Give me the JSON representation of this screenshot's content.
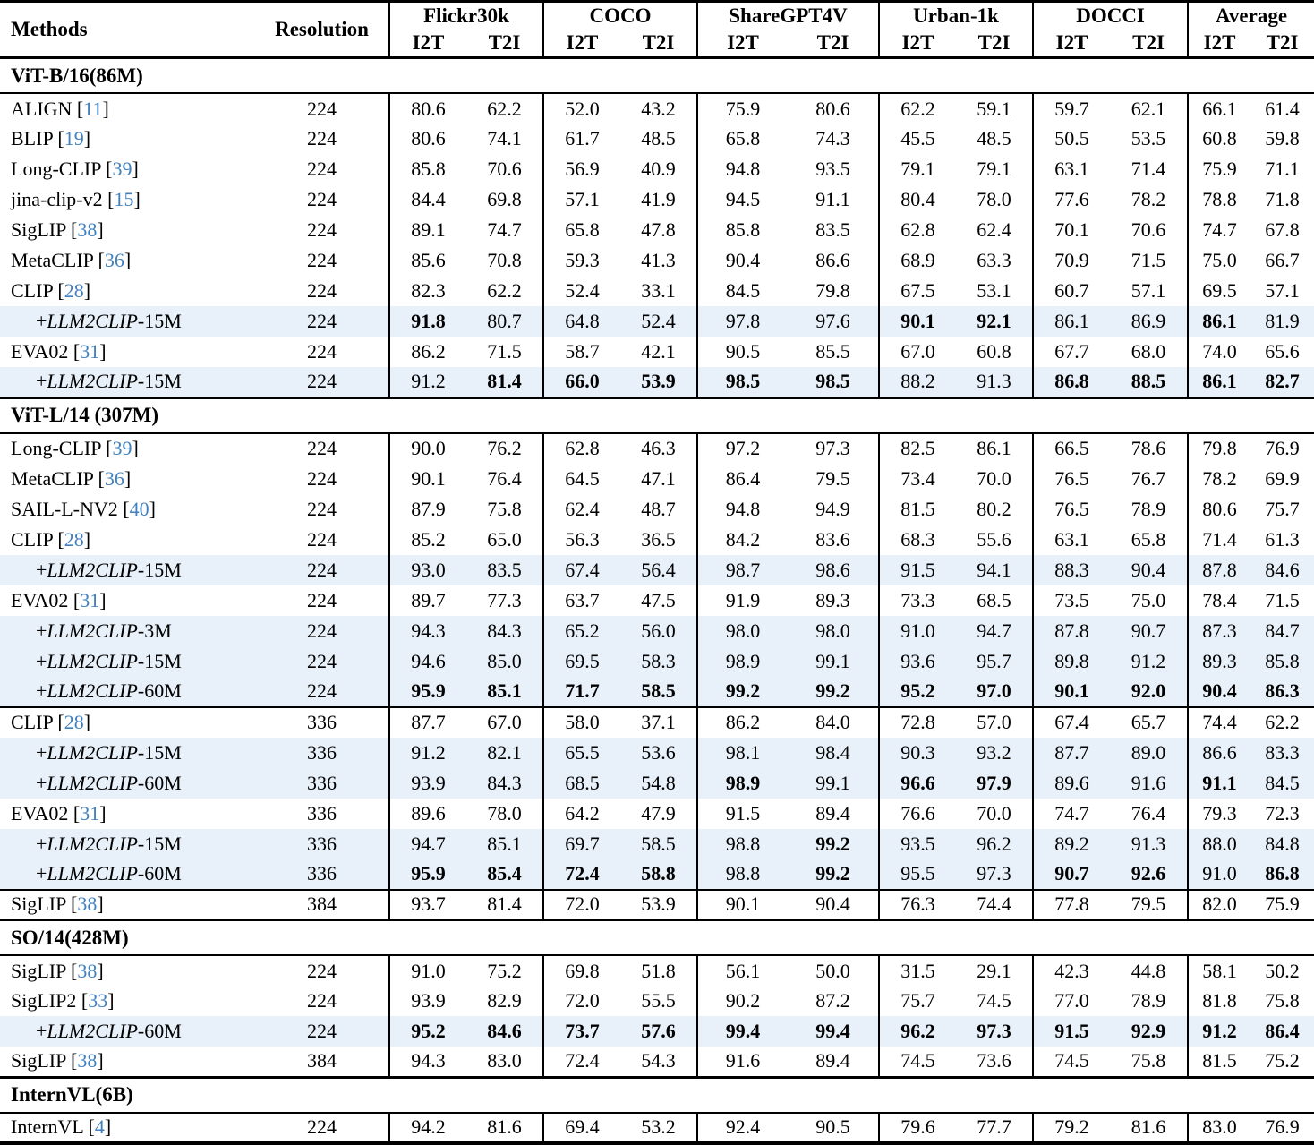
{
  "table": {
    "col_methods": "Methods",
    "col_resolution": "Resolution",
    "llm_prefix": "+",
    "llm_name": "LLM2CLIP",
    "groups": [
      "Flickr30k",
      "COCO",
      "ShareGPT4V",
      "Urban-1k",
      "DOCCI",
      "Average"
    ],
    "subcols": [
      "I2T",
      "T2I"
    ],
    "colors": {
      "highlight": "#e8f1fa",
      "citation": "#4080bf"
    },
    "sections": [
      {
        "title": "ViT-B/16(86M)",
        "rows": [
          {
            "method": "ALIGN",
            "cite": "11",
            "res": "224",
            "vals": [
              "80.6",
              "62.2",
              "52.0",
              "43.2",
              "75.9",
              "80.6",
              "62.2",
              "59.1",
              "59.7",
              "62.1",
              "66.1",
              "61.4"
            ],
            "bold": [],
            "hl": false
          },
          {
            "method": "BLIP",
            "cite": "19",
            "res": "224",
            "vals": [
              "80.6",
              "74.1",
              "61.7",
              "48.5",
              "65.8",
              "74.3",
              "45.5",
              "48.5",
              "50.5",
              "53.5",
              "60.8",
              "59.8"
            ],
            "bold": [],
            "hl": false
          },
          {
            "method": "Long-CLIP",
            "cite": "39",
            "res": "224",
            "vals": [
              "85.8",
              "70.6",
              "56.9",
              "40.9",
              "94.8",
              "93.5",
              "79.1",
              "79.1",
              "63.1",
              "71.4",
              "75.9",
              "71.1"
            ],
            "bold": [],
            "hl": false
          },
          {
            "method": "jina-clip-v2",
            "cite": "15",
            "res": "224",
            "vals": [
              "84.4",
              "69.8",
              "57.1",
              "41.9",
              "94.5",
              "91.1",
              "80.4",
              "78.0",
              "77.6",
              "78.2",
              "78.8",
              "71.8"
            ],
            "bold": [],
            "hl": false
          },
          {
            "method": "SigLIP",
            "cite": "38",
            "res": "224",
            "vals": [
              "89.1",
              "74.7",
              "65.8",
              "47.8",
              "85.8",
              "83.5",
              "62.8",
              "62.4",
              "70.1",
              "70.6",
              "74.7",
              "67.8"
            ],
            "bold": [],
            "hl": false
          },
          {
            "method": "MetaCLIP",
            "cite": "36",
            "res": "224",
            "vals": [
              "85.6",
              "70.8",
              "59.3",
              "41.3",
              "90.4",
              "86.6",
              "68.9",
              "63.3",
              "70.9",
              "71.5",
              "75.0",
              "66.7"
            ],
            "bold": [],
            "hl": false
          },
          {
            "method": "CLIP",
            "cite": "28",
            "res": "224",
            "vals": [
              "82.3",
              "62.2",
              "52.4",
              "33.1",
              "84.5",
              "79.8",
              "67.5",
              "53.1",
              "60.7",
              "57.1",
              "69.5",
              "57.1"
            ],
            "bold": [],
            "hl": false
          },
          {
            "variant": "-15M",
            "res": "224",
            "vals": [
              "91.8",
              "80.7",
              "64.8",
              "52.4",
              "97.8",
              "97.6",
              "90.1",
              "92.1",
              "86.1",
              "86.9",
              "86.1",
              "81.9"
            ],
            "bold": [
              0,
              6,
              7,
              10
            ],
            "hl": true
          },
          {
            "method": "EVA02",
            "cite": "31",
            "res": "224",
            "vals": [
              "86.2",
              "71.5",
              "58.7",
              "42.1",
              "90.5",
              "85.5",
              "67.0",
              "60.8",
              "67.7",
              "68.0",
              "74.0",
              "65.6"
            ],
            "bold": [],
            "hl": false
          },
          {
            "variant": "-15M",
            "res": "224",
            "vals": [
              "91.2",
              "81.4",
              "66.0",
              "53.9",
              "98.5",
              "98.5",
              "88.2",
              "91.3",
              "86.8",
              "88.5",
              "86.1",
              "82.7"
            ],
            "bold": [
              1,
              2,
              3,
              4,
              5,
              8,
              9,
              10,
              11
            ],
            "hl": true
          }
        ]
      },
      {
        "title": "ViT-L/14 (307M)",
        "rows": [
          {
            "method": "Long-CLIP",
            "cite": "39",
            "res": "224",
            "vals": [
              "90.0",
              "76.2",
              "62.8",
              "46.3",
              "97.2",
              "97.3",
              "82.5",
              "86.1",
              "66.5",
              "78.6",
              "79.8",
              "76.9"
            ],
            "bold": [],
            "hl": false
          },
          {
            "method": "MetaCLIP",
            "cite": "36",
            "res": "224",
            "vals": [
              "90.1",
              "76.4",
              "64.5",
              "47.1",
              "86.4",
              "79.5",
              "73.4",
              "70.0",
              "76.5",
              "76.7",
              "78.2",
              "69.9"
            ],
            "bold": [],
            "hl": false
          },
          {
            "method": "SAIL-L-NV2",
            "cite": "40",
            "res": "224",
            "vals": [
              "87.9",
              "75.8",
              "62.4",
              "48.7",
              "94.8",
              "94.9",
              "81.5",
              "80.2",
              "76.5",
              "78.9",
              "80.6",
              "75.7"
            ],
            "bold": [],
            "hl": false
          },
          {
            "method": "CLIP",
            "cite": "28",
            "res": "224",
            "vals": [
              "85.2",
              "65.0",
              "56.3",
              "36.5",
              "84.2",
              "83.6",
              "68.3",
              "55.6",
              "63.1",
              "65.8",
              "71.4",
              "61.3"
            ],
            "bold": [],
            "hl": false
          },
          {
            "variant": "-15M",
            "res": "224",
            "vals": [
              "93.0",
              "83.5",
              "67.4",
              "56.4",
              "98.7",
              "98.6",
              "91.5",
              "94.1",
              "88.3",
              "90.4",
              "87.8",
              "84.6"
            ],
            "bold": [],
            "hl": true
          },
          {
            "method": "EVA02",
            "cite": "31",
            "res": "224",
            "vals": [
              "89.7",
              "77.3",
              "63.7",
              "47.5",
              "91.9",
              "89.3",
              "73.3",
              "68.5",
              "73.5",
              "75.0",
              "78.4",
              "71.5"
            ],
            "bold": [],
            "hl": false
          },
          {
            "variant": "-3M",
            "res": "224",
            "vals": [
              "94.3",
              "84.3",
              "65.2",
              "56.0",
              "98.0",
              "98.0",
              "91.0",
              "94.7",
              "87.8",
              "90.7",
              "87.3",
              "84.7"
            ],
            "bold": [],
            "hl": true
          },
          {
            "variant": "-15M",
            "res": "224",
            "vals": [
              "94.6",
              "85.0",
              "69.5",
              "58.3",
              "98.9",
              "99.1",
              "93.6",
              "95.7",
              "89.8",
              "91.2",
              "89.3",
              "85.8"
            ],
            "bold": [],
            "hl": true
          },
          {
            "variant": "-60M",
            "res": "224",
            "vals": [
              "95.9",
              "85.1",
              "71.7",
              "58.5",
              "99.2",
              "99.2",
              "95.2",
              "97.0",
              "90.1",
              "92.0",
              "90.4",
              "86.3"
            ],
            "bold": "all",
            "hl": true
          },
          {
            "method": "CLIP",
            "cite": "28",
            "res": "336",
            "vals": [
              "87.7",
              "67.0",
              "58.0",
              "37.1",
              "86.2",
              "84.0",
              "72.8",
              "57.0",
              "67.4",
              "65.7",
              "74.4",
              "62.2"
            ],
            "bold": [],
            "hl": false,
            "rule_before": true
          },
          {
            "variant": "-15M",
            "res": "336",
            "vals": [
              "91.2",
              "82.1",
              "65.5",
              "53.6",
              "98.1",
              "98.4",
              "90.3",
              "93.2",
              "87.7",
              "89.0",
              "86.6",
              "83.3"
            ],
            "bold": [],
            "hl": true
          },
          {
            "variant": "-60M",
            "res": "336",
            "vals": [
              "93.9",
              "84.3",
              "68.5",
              "54.8",
              "98.9",
              "99.1",
              "96.6",
              "97.9",
              "89.6",
              "91.6",
              "91.1",
              "84.5"
            ],
            "bold": [
              4,
              6,
              7,
              10
            ],
            "hl": true
          },
          {
            "method": "EVA02",
            "cite": "31",
            "res": "336",
            "vals": [
              "89.6",
              "78.0",
              "64.2",
              "47.9",
              "91.5",
              "89.4",
              "76.6",
              "70.0",
              "74.7",
              "76.4",
              "79.3",
              "72.3"
            ],
            "bold": [],
            "hl": false
          },
          {
            "variant": "-15M",
            "res": "336",
            "vals": [
              "94.7",
              "85.1",
              "69.7",
              "58.5",
              "98.8",
              "99.2",
              "93.5",
              "96.2",
              "89.2",
              "91.3",
              "88.0",
              "84.8"
            ],
            "bold": [
              5
            ],
            "hl": true
          },
          {
            "variant": "-60M",
            "res": "336",
            "vals": [
              "95.9",
              "85.4",
              "72.4",
              "58.8",
              "98.8",
              "99.2",
              "95.5",
              "97.3",
              "90.7",
              "92.6",
              "91.0",
              "86.8"
            ],
            "bold": [
              0,
              1,
              2,
              3,
              5,
              8,
              9,
              11
            ],
            "hl": true
          },
          {
            "method": "SigLIP",
            "cite": "38",
            "res": "384",
            "vals": [
              "93.7",
              "81.4",
              "72.0",
              "53.9",
              "90.1",
              "90.4",
              "76.3",
              "74.4",
              "77.8",
              "79.5",
              "82.0",
              "75.9"
            ],
            "bold": [],
            "hl": false,
            "rule_before": true
          }
        ]
      },
      {
        "title": "SO/14(428M)",
        "rows": [
          {
            "method": "SigLIP",
            "cite": "38",
            "res": "224",
            "vals": [
              "91.0",
              "75.2",
              "69.8",
              "51.8",
              "56.1",
              "50.0",
              "31.5",
              "29.1",
              "42.3",
              "44.8",
              "58.1",
              "50.2"
            ],
            "bold": [],
            "hl": false
          },
          {
            "method": "SigLIP2",
            "cite": "33",
            "res": "224",
            "vals": [
              "93.9",
              "82.9",
              "72.0",
              "55.5",
              "90.2",
              "87.2",
              "75.7",
              "74.5",
              "77.0",
              "78.9",
              "81.8",
              "75.8"
            ],
            "bold": [],
            "hl": false
          },
          {
            "variant": "-60M",
            "res": "224",
            "vals": [
              "95.2",
              "84.6",
              "73.7",
              "57.6",
              "99.4",
              "99.4",
              "96.2",
              "97.3",
              "91.5",
              "92.9",
              "91.2",
              "86.4"
            ],
            "bold": "all",
            "hl": true
          },
          {
            "method": "SigLIP",
            "cite": "38",
            "res": "384",
            "vals": [
              "94.3",
              "83.0",
              "72.4",
              "54.3",
              "91.6",
              "89.4",
              "74.5",
              "73.6",
              "74.5",
              "75.8",
              "81.5",
              "75.2"
            ],
            "bold": [],
            "hl": false
          }
        ]
      },
      {
        "title": "InternVL(6B)",
        "rows": [
          {
            "method": "InternVL",
            "cite": "4",
            "res": "224",
            "vals": [
              "94.2",
              "81.6",
              "69.4",
              "53.2",
              "92.4",
              "90.5",
              "79.6",
              "77.7",
              "79.2",
              "81.6",
              "83.0",
              "76.9"
            ],
            "bold": [],
            "hl": false
          }
        ]
      }
    ]
  }
}
